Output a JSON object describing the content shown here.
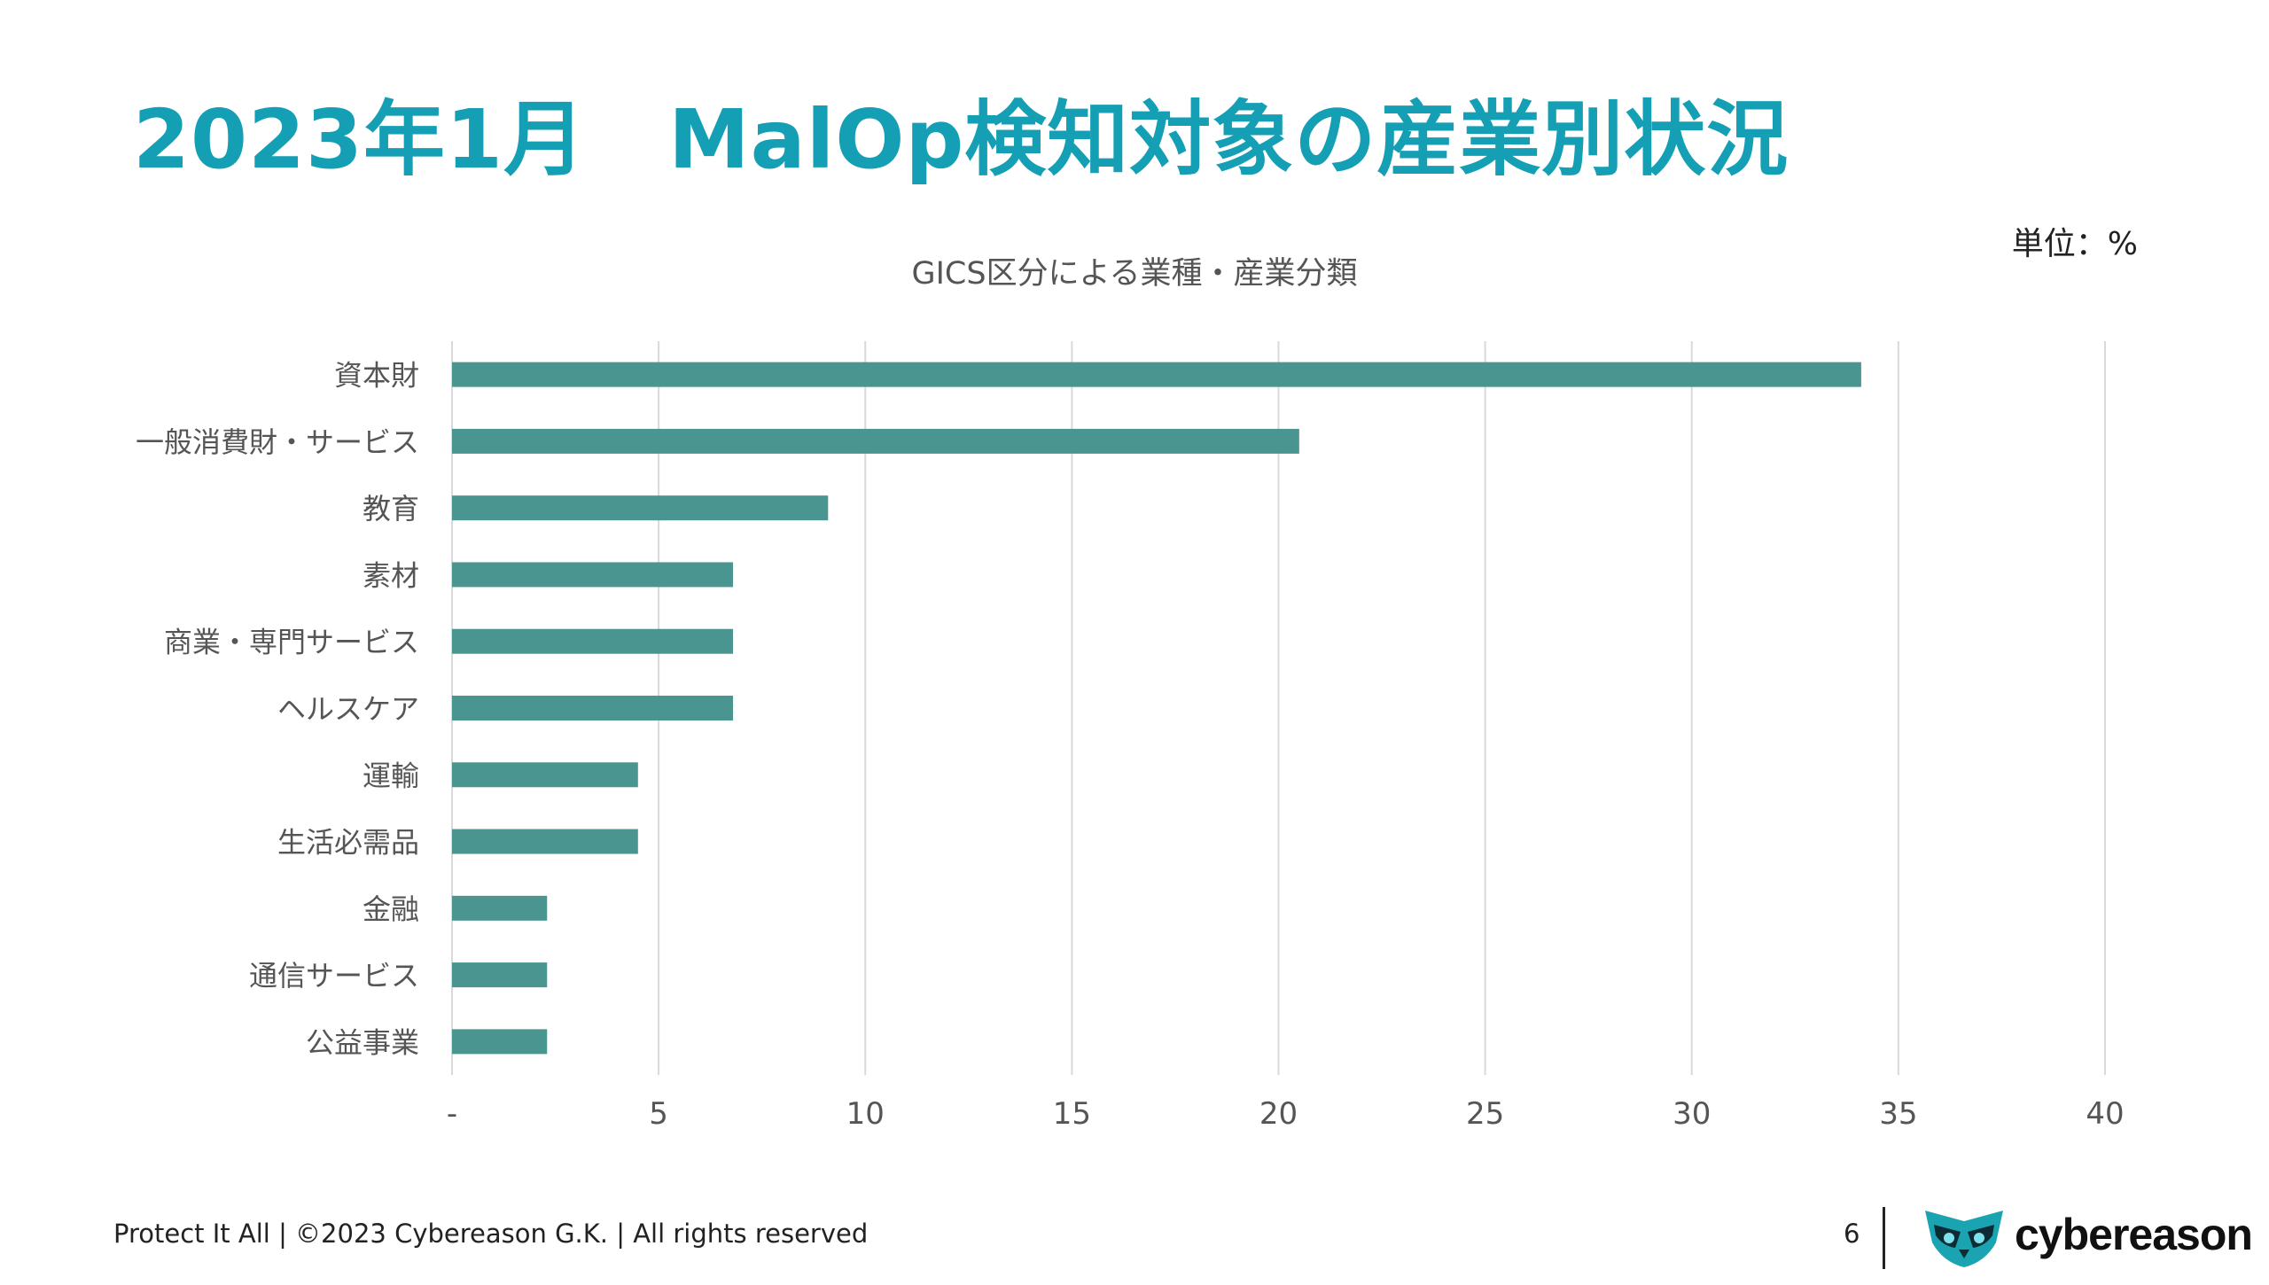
{
  "slide": {
    "title": "2023年1月　MalOp検知対象の産業別状況",
    "unit_label": "単位：%",
    "page_number": "6",
    "footer": "Protect It All | ©2023 Cybereason G.K. | All rights reserved",
    "logo_text": "cybereason"
  },
  "colors": {
    "title": "#159fb4",
    "bar": "#4a9590",
    "grid": "#d9d9d9",
    "logo": "#1aa3b0"
  },
  "chart_data": {
    "type": "bar",
    "orientation": "horizontal",
    "title": "GICS区分による業種・産業分類",
    "categories": [
      "資本財",
      "一般消費財・サービス",
      "教育",
      "素材",
      "商業・専門サービス",
      "ヘルスケア",
      "運輸",
      "生活必需品",
      "金融",
      "通信サービス",
      "公益事業"
    ],
    "values": [
      34.1,
      20.5,
      9.1,
      6.8,
      6.8,
      6.8,
      4.5,
      4.5,
      2.3,
      2.3,
      2.3
    ],
    "xlim": [
      0,
      40
    ],
    "xticks": [
      0,
      5,
      10,
      15,
      20,
      25,
      30,
      35,
      40
    ],
    "xtick_labels": [
      "-",
      "5",
      "10",
      "15",
      "20",
      "25",
      "30",
      "35",
      "40"
    ],
    "grid": "vertical",
    "legend": "none"
  }
}
